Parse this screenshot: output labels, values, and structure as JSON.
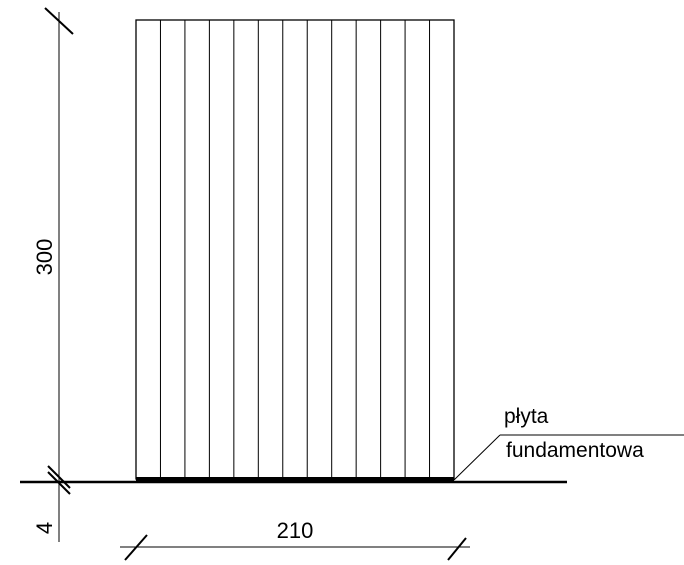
{
  "drawing": {
    "dimensions": {
      "height_main": "300",
      "height_slab": "4",
      "width": "210"
    },
    "label": {
      "line1": "płyta",
      "line2": "fundamentowa"
    },
    "panel_board_count": 13
  }
}
